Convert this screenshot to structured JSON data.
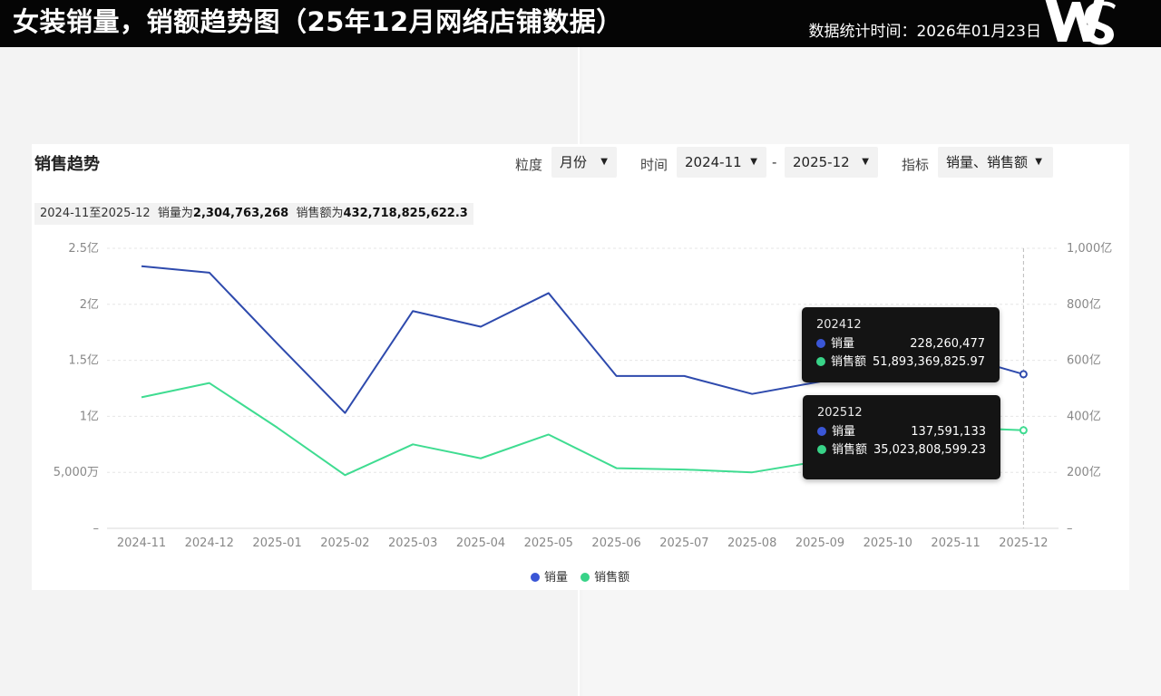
{
  "header": {
    "title": "女装销量，销额趋势图（25年12月网络店铺数据）",
    "stat_time": "数据统计时间：2026年01月23日",
    "logo_text": "WS"
  },
  "card": {
    "title": "销售趋势",
    "granularity_label": "粒度",
    "granularity_value": "月份",
    "time_label": "时间",
    "time_start": "2024-11",
    "time_separator": "-",
    "time_end": "2025-12",
    "metric_label": "指标",
    "metric_value": "销量、销售额",
    "summary": {
      "range": "2024-11至2025-12",
      "volume_prefix": "销量为",
      "volume_total": "2,304,763,268",
      "sales_prefix": "销售额为",
      "sales_total": "432,718,825,622.3"
    }
  },
  "tooltips": [
    {
      "period": "202412",
      "rows": [
        {
          "name": "销量",
          "value": "228,260,477"
        },
        {
          "name": "销售额",
          "value": "51,893,369,825.97"
        }
      ]
    },
    {
      "period": "202512",
      "rows": [
        {
          "name": "销量",
          "value": "137,591,133"
        },
        {
          "name": "销售额",
          "value": "35,023,808,599.23"
        }
      ]
    }
  ],
  "colors": {
    "volume": "#2e4aad",
    "sales": "#3fdc91",
    "volume_dot": "#3a56d6",
    "sales_dot": "#38d388"
  },
  "chart_data": {
    "type": "line",
    "categories": [
      "2024-11",
      "2024-12",
      "2025-01",
      "2025-02",
      "2025-03",
      "2025-04",
      "2025-05",
      "2025-06",
      "2025-07",
      "2025-08",
      "2025-09",
      "2025-10",
      "2025-11",
      "2025-12"
    ],
    "series": [
      {
        "name": "销量",
        "axis": "left",
        "values": [
          234000000,
          228260477,
          165000000,
          103000000,
          194000000,
          180000000,
          210000000,
          136000000,
          136000000,
          120000000,
          131000000,
          150000000,
          155000000,
          137591133
        ]
      },
      {
        "name": "销售额",
        "axis": "right",
        "values": [
          46800000000,
          51893369825.97,
          36000000000,
          19000000000,
          30000000000,
          25000000000,
          33500000000,
          21500000000,
          21000000000,
          20000000000,
          24000000000,
          32000000000,
          36000000000,
          35023808599.23
        ]
      }
    ],
    "y_left": {
      "range": [
        0,
        250000000
      ],
      "ticks": [
        0,
        50000000,
        100000000,
        150000000,
        200000000,
        250000000
      ],
      "tick_labels": [
        "–",
        "5,000万",
        "1亿",
        "1.5亿",
        "2亿",
        "2.5亿"
      ]
    },
    "y_right": {
      "range": [
        0,
        100000000000
      ],
      "ticks": [
        0,
        20000000000,
        40000000000,
        60000000000,
        80000000000,
        100000000000
      ],
      "tick_labels": [
        "–",
        "200亿",
        "400亿",
        "600亿",
        "800亿",
        "1,000亿"
      ]
    },
    "grid": true,
    "legend": "bottom-center",
    "highlight_category": "2025-12"
  }
}
